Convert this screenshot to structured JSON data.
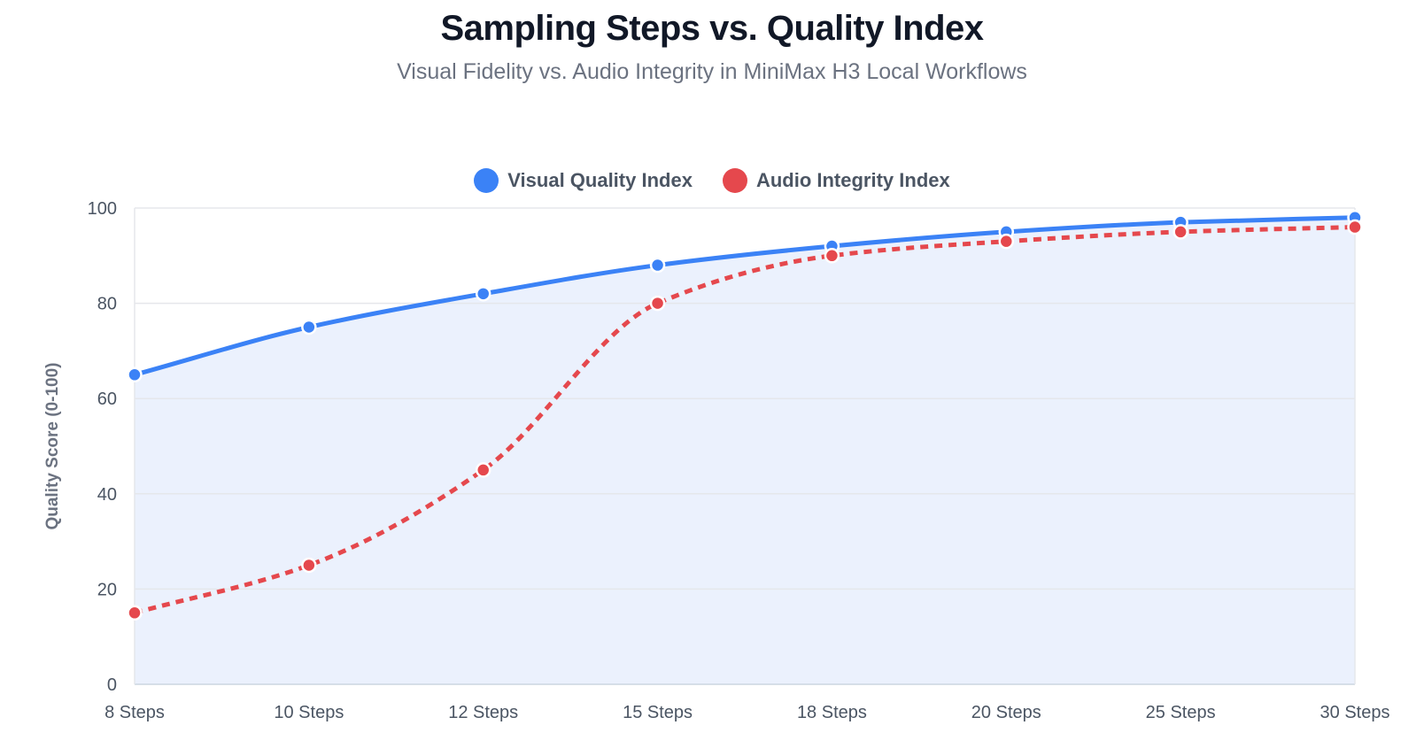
{
  "colors": {
    "visual": "#3b82f6",
    "audio": "#e5484d",
    "area_fill": "#ebf1fd",
    "grid": "#e5e7eb"
  },
  "chart_data": {
    "type": "line",
    "title": "Sampling Steps vs. Quality Index",
    "subtitle": "Visual Fidelity vs. Audio Integrity in MiniMax H3 Local Workflows",
    "xlabel": "",
    "ylabel": "Quality Score (0-100)",
    "categories": [
      "8 Steps",
      "10 Steps",
      "12 Steps",
      "15 Steps",
      "18 Steps",
      "20 Steps",
      "25 Steps",
      "30 Steps"
    ],
    "ylim": [
      0,
      100
    ],
    "yticks": [
      0,
      20,
      40,
      60,
      80,
      100
    ],
    "grid": true,
    "legend_position": "top-center",
    "series": [
      {
        "name": "Visual Quality Index",
        "values": [
          65,
          75,
          82,
          88,
          92,
          95,
          97,
          98
        ],
        "line_style": "solid",
        "fill": true
      },
      {
        "name": "Audio Integrity Index",
        "values": [
          15,
          25,
          45,
          80,
          90,
          93,
          95,
          96
        ],
        "line_style": "dashed",
        "fill": false
      }
    ]
  }
}
